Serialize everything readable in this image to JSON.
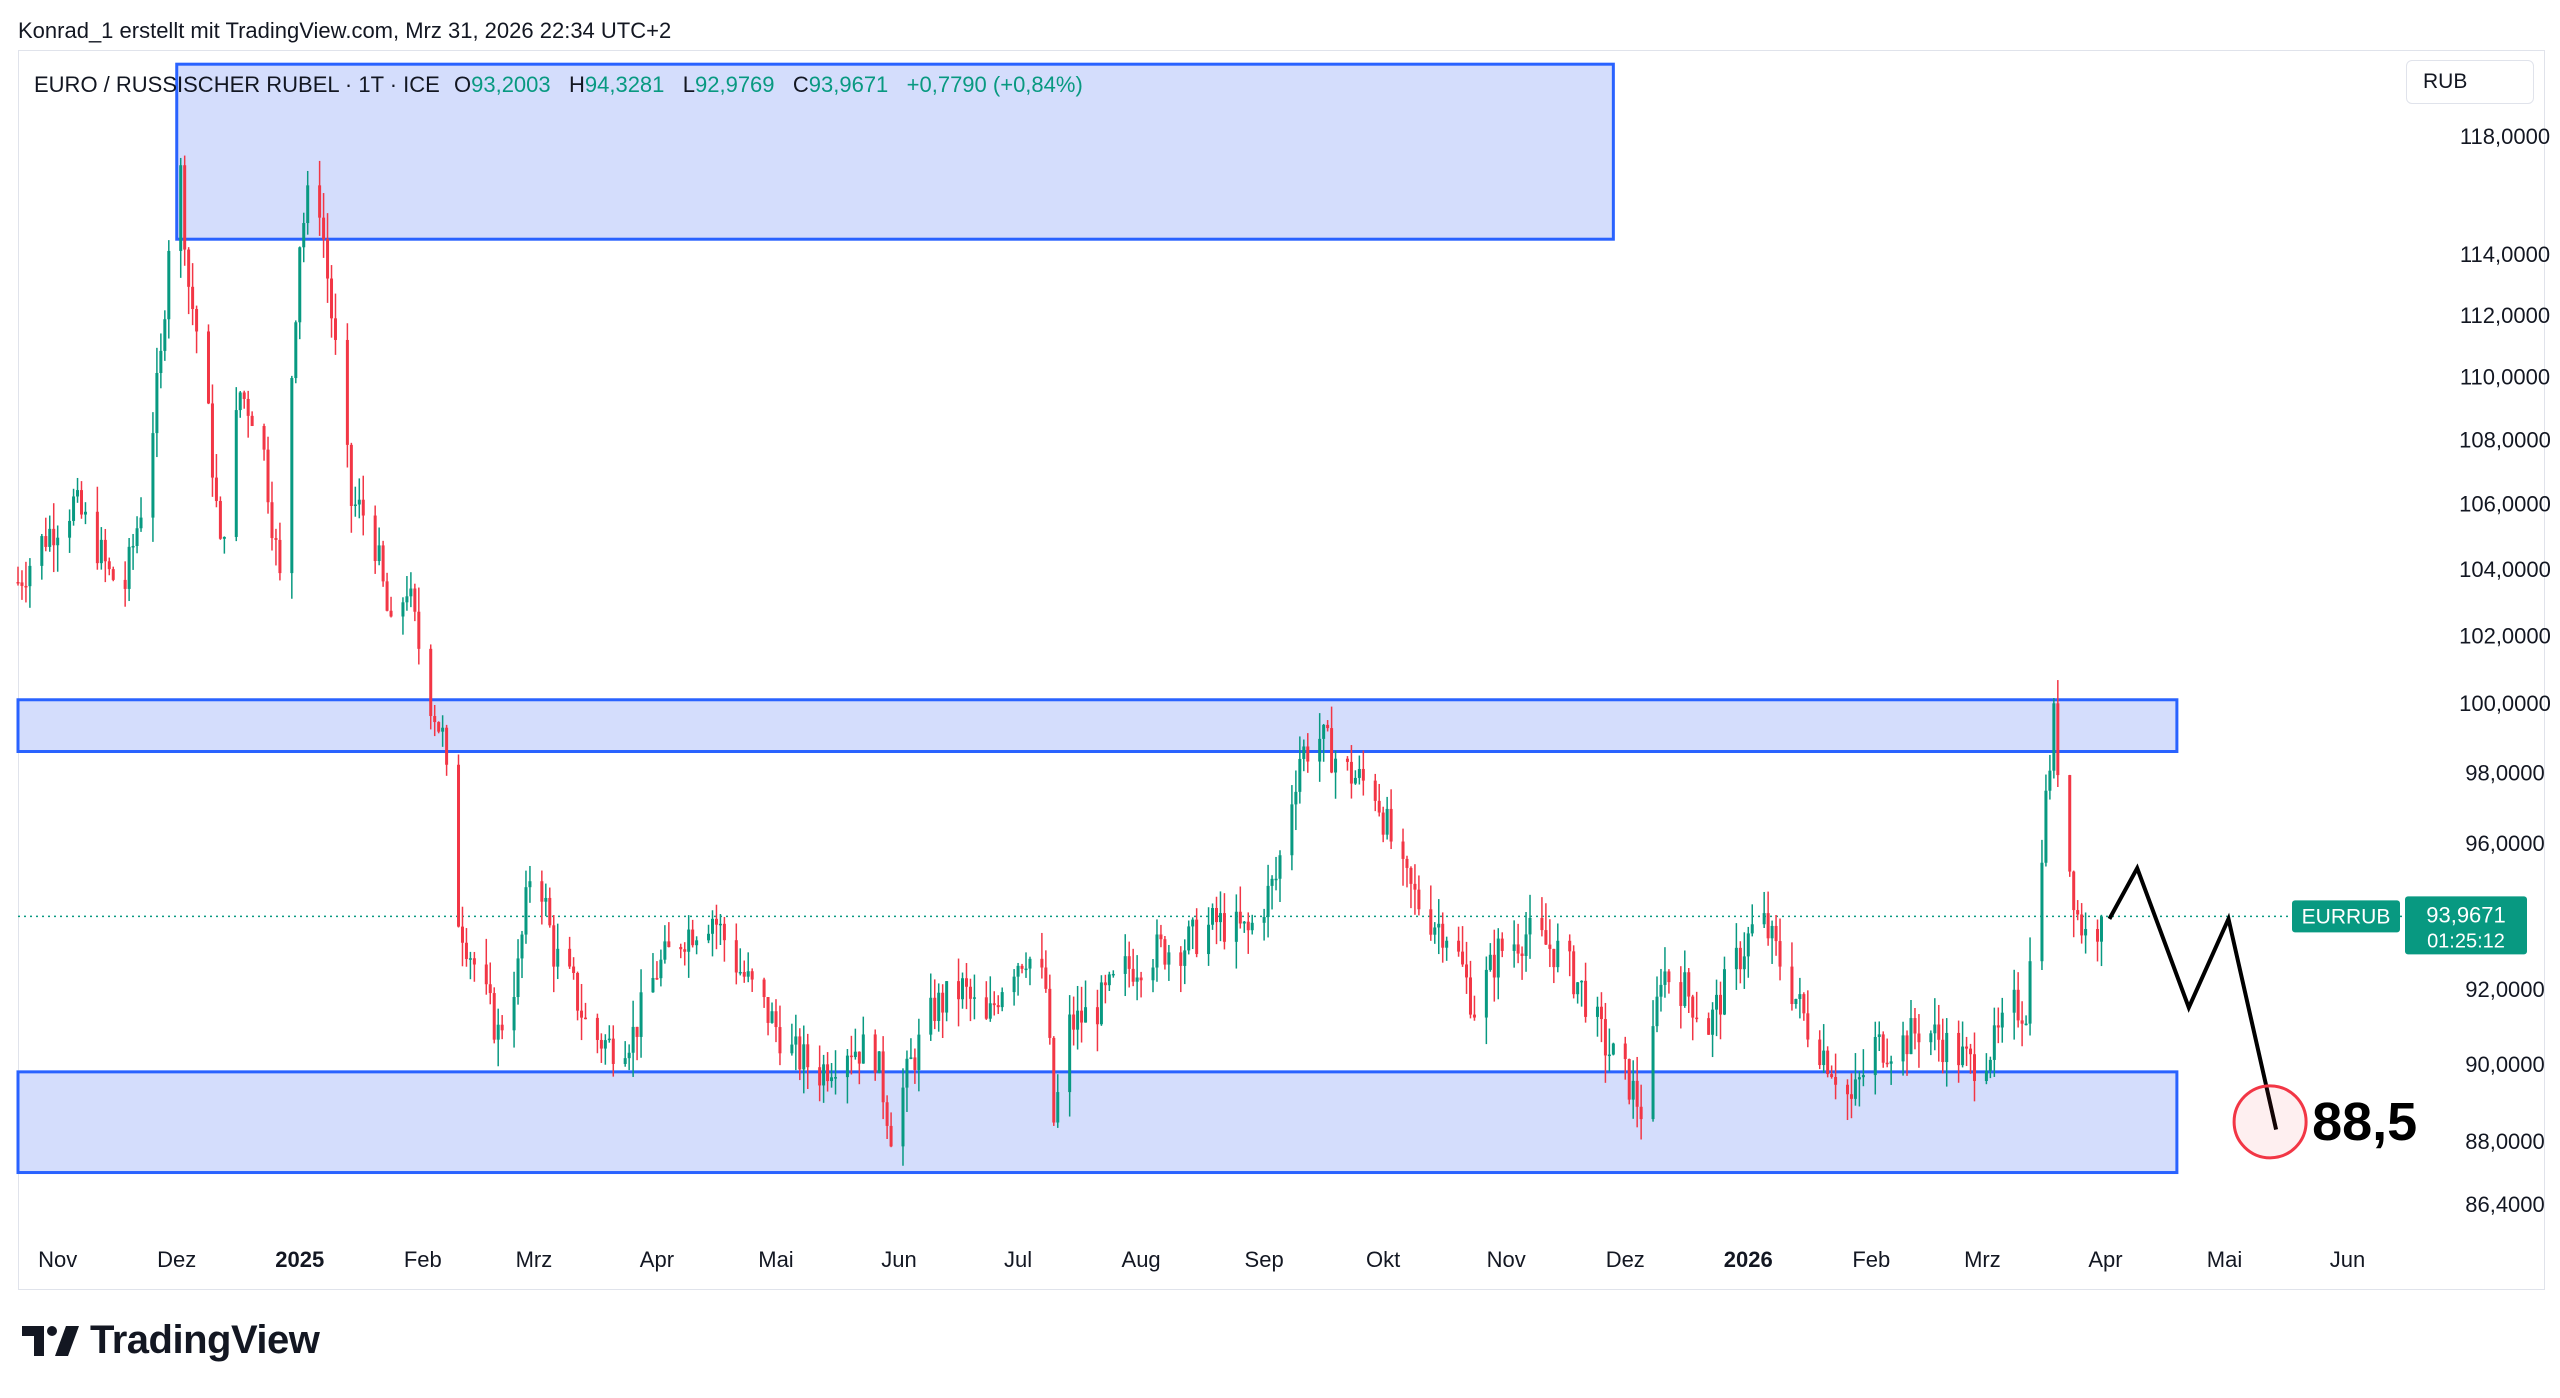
{
  "caption": "Konrad_1 erstellt mit TradingView.com, Mrz 31, 2026 22:34 UTC+2",
  "legend": {
    "symbol": "EURO / RUSSISCHER RUBEL · 1T · ICE",
    "open_label": "O",
    "open": "93,2003",
    "high_label": "H",
    "high": "94,3281",
    "low_label": "L",
    "low": "92,9769",
    "close_label": "C",
    "close": "93,9671",
    "change": "+0,7790 (+0,84%)"
  },
  "unit": "RUB",
  "price_tag": {
    "name": "EURRUB",
    "price": "93,9671",
    "countdown": "01:25:12"
  },
  "target_label": "88,5",
  "logo_text": "TradingView",
  "colors": {
    "up": "#089981",
    "down": "#f23645",
    "zone_fill": "#d4ddfc",
    "zone_stroke": "#2962ff",
    "target": "#f23645",
    "projection": "#000000"
  },
  "chart_data": {
    "type": "candlestick",
    "symbol": "EURRUB",
    "interval": "1T",
    "scale": "log",
    "y_ticks": [
      118,
      114,
      112,
      110,
      108,
      106,
      104,
      102,
      100,
      98,
      96,
      92,
      90,
      88,
      86.4
    ],
    "y_tick_labels": [
      "118,0000",
      "114,0000",
      "112,0000",
      "110,0000",
      "108,0000",
      "106,0000",
      "104,0000",
      "102,0000",
      "100,0000",
      "98,0000",
      "96,0000",
      "92,0000",
      "90,0000",
      "88,0000",
      "86,4000"
    ],
    "ylim": [
      85.5,
      121
    ],
    "x_ticks": [
      {
        "label": "Nov",
        "date": "2024-11-01",
        "bold": false
      },
      {
        "label": "Dez",
        "date": "2024-12-01",
        "bold": false
      },
      {
        "label": "2025",
        "date": "2025-01-01",
        "bold": true
      },
      {
        "label": "Feb",
        "date": "2025-02-01",
        "bold": false
      },
      {
        "label": "Mrz",
        "date": "2025-03-01",
        "bold": false
      },
      {
        "label": "Apr",
        "date": "2025-04-01",
        "bold": false
      },
      {
        "label": "Mai",
        "date": "2025-05-01",
        "bold": false
      },
      {
        "label": "Jun",
        "date": "2025-06-01",
        "bold": false
      },
      {
        "label": "Jul",
        "date": "2025-07-01",
        "bold": false
      },
      {
        "label": "Aug",
        "date": "2025-08-01",
        "bold": false
      },
      {
        "label": "Sep",
        "date": "2025-09-01",
        "bold": false
      },
      {
        "label": "Okt",
        "date": "2025-10-01",
        "bold": false
      },
      {
        "label": "Nov",
        "date": "2025-11-01",
        "bold": false
      },
      {
        "label": "Dez",
        "date": "2025-12-01",
        "bold": false
      },
      {
        "label": "2026",
        "date": "2026-01-01",
        "bold": true
      },
      {
        "label": "Feb",
        "date": "2026-02-01",
        "bold": false
      },
      {
        "label": "Mrz",
        "date": "2026-03-01",
        "bold": false
      },
      {
        "label": "Apr",
        "date": "2026-04-01",
        "bold": false
      },
      {
        "label": "Mai",
        "date": "2026-05-01",
        "bold": false
      },
      {
        "label": "Jun",
        "date": "2026-06-01",
        "bold": false
      }
    ],
    "xlim": [
      "2024-10-22",
      "2026-06-18"
    ],
    "price_path": [
      [
        "2024-10-22",
        103.6
      ],
      [
        "2024-10-29",
        105.0
      ],
      [
        "2024-11-05",
        106.0
      ],
      [
        "2024-11-10",
        105.0
      ],
      [
        "2024-11-14",
        103.8
      ],
      [
        "2024-11-18",
        103.5
      ],
      [
        "2024-11-23",
        106.5
      ],
      [
        "2024-11-27",
        110.5
      ],
      [
        "2024-12-01",
        118.5
      ],
      [
        "2024-12-04",
        113.0
      ],
      [
        "2024-12-08",
        110.0
      ],
      [
        "2024-12-12",
        104.5
      ],
      [
        "2024-12-17",
        109.5
      ],
      [
        "2024-12-22",
        108.5
      ],
      [
        "2024-12-27",
        103.6
      ],
      [
        "2025-01-01",
        114.5
      ],
      [
        "2025-01-05",
        117.0
      ],
      [
        "2025-01-09",
        112.0
      ],
      [
        "2025-01-14",
        106.0
      ],
      [
        "2025-01-19",
        105.5
      ],
      [
        "2025-01-24",
        102.0
      ],
      [
        "2025-01-28",
        103.5
      ],
      [
        "2025-02-02",
        100.5
      ],
      [
        "2025-02-06",
        99.0
      ],
      [
        "2025-02-10",
        94.0
      ],
      [
        "2025-02-16",
        92.0
      ],
      [
        "2025-02-20",
        90.8
      ],
      [
        "2025-02-25",
        92.5
      ],
      [
        "2025-03-01",
        96.0
      ],
      [
        "2025-03-06",
        93.0
      ],
      [
        "2025-03-11",
        92.0
      ],
      [
        "2025-03-15",
        90.8
      ],
      [
        "2025-03-20",
        90.5
      ],
      [
        "2025-03-26",
        90.8
      ],
      [
        "2025-04-01",
        92.5
      ],
      [
        "2025-04-08",
        93.5
      ],
      [
        "2025-04-15",
        94.0
      ],
      [
        "2025-04-22",
        92.5
      ],
      [
        "2025-04-28",
        91.5
      ],
      [
        "2025-05-05",
        90.3
      ],
      [
        "2025-05-12",
        89.8
      ],
      [
        "2025-05-19",
        90.5
      ],
      [
        "2025-05-26",
        90.3
      ],
      [
        "2025-05-30",
        88.3
      ],
      [
        "2025-06-04",
        90.0
      ],
      [
        "2025-06-10",
        91.5
      ],
      [
        "2025-06-17",
        92.0
      ],
      [
        "2025-06-23",
        91.0
      ],
      [
        "2025-06-28",
        92.5
      ],
      [
        "2025-07-03",
        93.0
      ],
      [
        "2025-07-08",
        92.0
      ],
      [
        "2025-07-10",
        88.5
      ],
      [
        "2025-07-14",
        91.0
      ],
      [
        "2025-07-21",
        91.5
      ],
      [
        "2025-07-28",
        92.5
      ],
      [
        "2025-08-04",
        93.0
      ],
      [
        "2025-08-12",
        93.2
      ],
      [
        "2025-08-20",
        93.8
      ],
      [
        "2025-08-28",
        93.5
      ],
      [
        "2025-09-04",
        95.0
      ],
      [
        "2025-09-10",
        98.5
      ],
      [
        "2025-09-15",
        99.0
      ],
      [
        "2025-09-22",
        98.0
      ],
      [
        "2025-09-29",
        97.5
      ],
      [
        "2025-10-06",
        95.0
      ],
      [
        "2025-10-12",
        94.0
      ],
      [
        "2025-10-18",
        93.5
      ],
      [
        "2025-10-24",
        91.5
      ],
      [
        "2025-10-30",
        93.0
      ],
      [
        "2025-11-06",
        93.5
      ],
      [
        "2025-11-14",
        93.0
      ],
      [
        "2025-11-20",
        92.0
      ],
      [
        "2025-11-26",
        90.5
      ],
      [
        "2025-12-02",
        89.5
      ],
      [
        "2025-12-06",
        88.6
      ],
      [
        "2025-12-10",
        92.5
      ],
      [
        "2025-12-16",
        92.0
      ],
      [
        "2025-12-22",
        91.0
      ],
      [
        "2025-12-28",
        92.5
      ],
      [
        "2026-01-04",
        94.0
      ],
      [
        "2026-01-10",
        92.5
      ],
      [
        "2026-01-16",
        91.0
      ],
      [
        "2026-01-22",
        90.0
      ],
      [
        "2026-01-27",
        89.0
      ],
      [
        "2026-02-02",
        90.5
      ],
      [
        "2026-02-08",
        90.5
      ],
      [
        "2026-02-14",
        91.0
      ],
      [
        "2026-02-20",
        90.5
      ],
      [
        "2026-02-26",
        90.0
      ],
      [
        "2026-03-04",
        90.5
      ],
      [
        "2026-03-09",
        91.5
      ],
      [
        "2026-03-12",
        91.5
      ],
      [
        "2026-03-16",
        96.0
      ],
      [
        "2026-03-19",
        99.5
      ],
      [
        "2026-03-22",
        96.0
      ],
      [
        "2026-03-25",
        94.0
      ],
      [
        "2026-03-28",
        93.2
      ],
      [
        "2026-03-31",
        93.97
      ]
    ],
    "last_price": 93.9671,
    "zones": [
      {
        "from": "2024-12-01",
        "to": "2025-11-28",
        "low": 114.5,
        "high": 120.5
      },
      {
        "from": "2024-10-22",
        "to": "2026-04-19",
        "low": 98.6,
        "high": 100.1
      },
      {
        "from": "2024-10-22",
        "to": "2026-04-19",
        "low": 87.2,
        "high": 89.8
      }
    ],
    "projection": [
      [
        "2026-04-02",
        93.9
      ],
      [
        "2026-04-09",
        95.3
      ],
      [
        "2026-04-22",
        91.5
      ],
      [
        "2026-05-02",
        93.9
      ],
      [
        "2026-05-14",
        88.3
      ]
    ],
    "target": {
      "date": "2026-05-14",
      "value": 88.5
    }
  }
}
